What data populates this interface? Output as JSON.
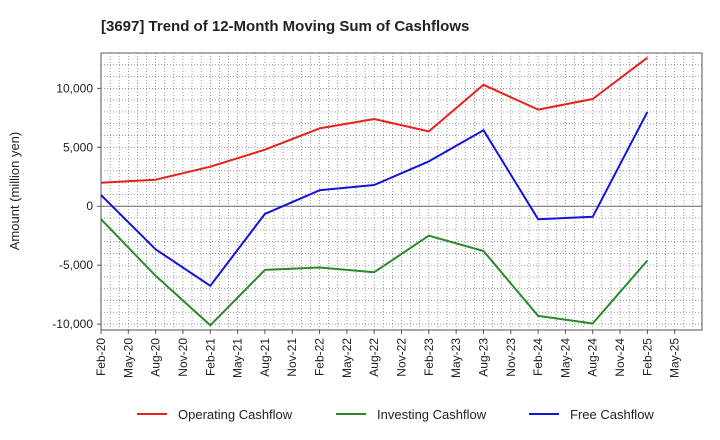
{
  "chart_data": {
    "type": "line",
    "title": "[3697]  Trend of 12-Month Moving Sum of Cashflows",
    "xlabel": "",
    "ylabel": "Amount (million yen)",
    "ylim": [
      -10500,
      13000
    ],
    "y_ticks": [
      -10000,
      -5000,
      0,
      5000,
      10000
    ],
    "y_tick_labels": [
      "-10,000",
      "-5,000",
      "0",
      "5,000",
      "10,000"
    ],
    "x_tick_labels": [
      "Feb-20",
      "May-20",
      "Aug-20",
      "Nov-20",
      "Feb-21",
      "May-21",
      "Aug-21",
      "Nov-21",
      "Feb-22",
      "May-22",
      "Aug-22",
      "Nov-22",
      "Feb-23",
      "May-23",
      "Aug-23",
      "Nov-23",
      "Feb-24",
      "May-24",
      "Aug-24",
      "Nov-24",
      "Feb-25",
      "May-25"
    ],
    "categories": [
      "Feb-20",
      "Aug-20",
      "Feb-21",
      "Aug-21",
      "Feb-22",
      "Aug-22",
      "Feb-23",
      "Aug-23",
      "Feb-24",
      "Aug-24",
      "Feb-25"
    ],
    "grid": true,
    "legend_position": "bottom",
    "series": [
      {
        "name": "Operating Cashflow",
        "color": "#e8201c",
        "values": [
          2000,
          2250,
          3350,
          4800,
          6600,
          7400,
          6350,
          10300,
          8200,
          9100,
          12600
        ]
      },
      {
        "name": "Investing Cashflow",
        "color": "#2a8a2a",
        "values": [
          -1100,
          -5900,
          -10100,
          -5400,
          -5200,
          -5600,
          -2500,
          -3800,
          -9300,
          -9950,
          -4600
        ]
      },
      {
        "name": "Free Cashflow",
        "color": "#1414d8",
        "values": [
          950,
          -3650,
          -6750,
          -650,
          1350,
          1800,
          3800,
          6450,
          -1100,
          -900,
          8000
        ]
      }
    ]
  }
}
